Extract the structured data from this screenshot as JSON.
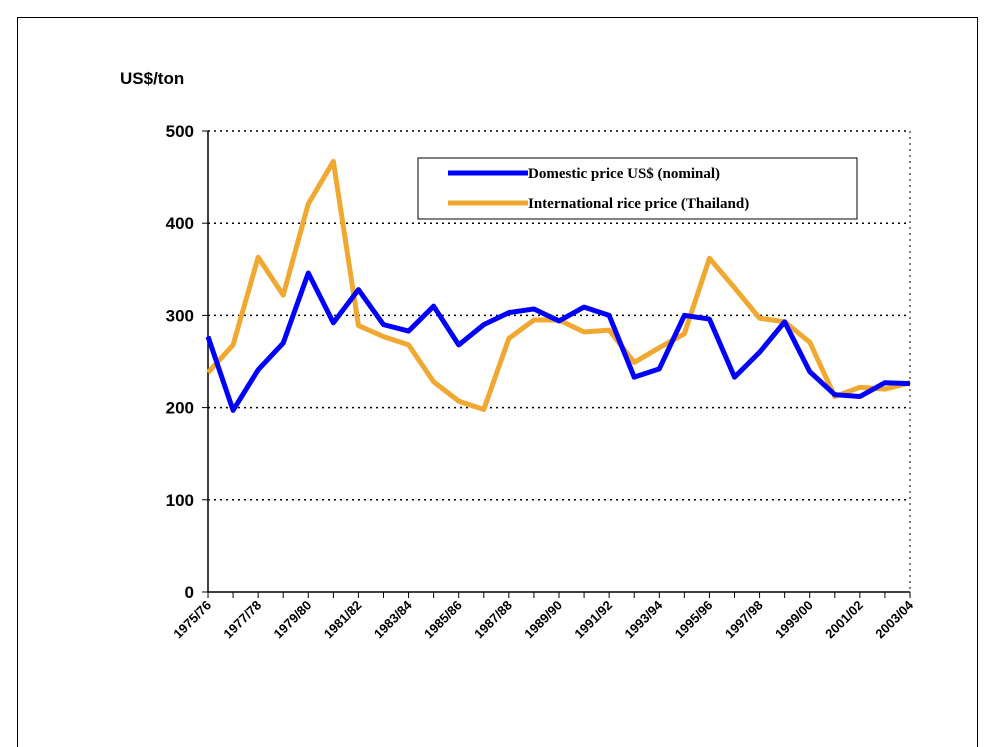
{
  "chart_data": {
    "type": "line",
    "y_label": "US$/ton",
    "categories": [
      "1975/76",
      null,
      "1977/78",
      null,
      "1979/80",
      null,
      "1981/82",
      null,
      "1983/84",
      null,
      "1985/86",
      null,
      "1987/88",
      null,
      "1989/90",
      null,
      "1991/92",
      null,
      "1993/94",
      null,
      "1995/96",
      null,
      "1997/98",
      null,
      "1999/00",
      null,
      "2001/02",
      null,
      "2003/04"
    ],
    "series": [
      {
        "name": "Domestic price US$ (nominal)",
        "color": "#0000ff",
        "values": [
          277,
          197,
          241,
          270,
          346,
          292,
          328,
          290,
          283,
          310,
          268,
          290,
          303,
          307,
          294,
          309,
          300,
          233,
          242,
          300,
          296,
          233,
          260,
          293,
          239,
          214,
          212,
          227,
          226
        ]
      },
      {
        "name": "International rice price  (Thailand)",
        "color": "#f0a830",
        "values": [
          238,
          268,
          363,
          322,
          421,
          467,
          289,
          277,
          268,
          228,
          207,
          198,
          275,
          295,
          295,
          282,
          284,
          249,
          265,
          280,
          362,
          330,
          297,
          293,
          271,
          212,
          222,
          220,
          227
        ]
      }
    ],
    "ylim": [
      0,
      500
    ],
    "yticks": [
      0,
      100,
      200,
      300,
      400,
      500
    ],
    "grid": true
  }
}
